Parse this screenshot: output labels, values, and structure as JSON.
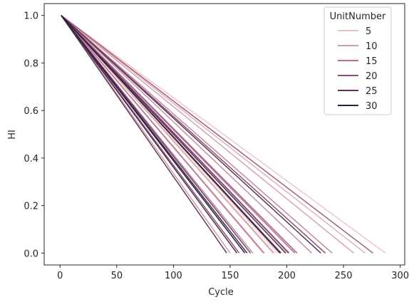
{
  "chart_data": {
    "type": "line",
    "xlabel": "Cycle",
    "ylabel": "HI",
    "xlim": [
      -14,
      304
    ],
    "ylim": [
      -0.05,
      1.05
    ],
    "x_ticks": [
      0,
      50,
      100,
      150,
      200,
      250,
      300
    ],
    "y_ticks": [
      0.0,
      0.2,
      0.4,
      0.6,
      0.8,
      1.0
    ],
    "x_tick_labels": [
      "0",
      "50",
      "100",
      "150",
      "200",
      "250",
      "300"
    ],
    "y_tick_labels": [
      "0.0",
      "0.2",
      "0.4",
      "0.6",
      "0.8",
      "1.0"
    ],
    "grid": false,
    "legend": {
      "title": "UnitNumber",
      "placement": "top-right",
      "entries": [
        {
          "label": "5",
          "color": "#ebc3bd"
        },
        {
          "label": "10",
          "color": "#d799a9"
        },
        {
          "label": "15",
          "color": "#b96e91"
        },
        {
          "label": "20",
          "color": "#8c4b7b"
        },
        {
          "label": "25",
          "color": "#5e2f5e"
        },
        {
          "label": "30",
          "color": "#2d1e3e"
        }
      ]
    },
    "colorscale": {
      "min_unit": 1,
      "max_unit": 30,
      "light": "#f0d0c8",
      "mid": "#b2668c",
      "dark": "#2d1e3e"
    },
    "series": [
      {
        "unit": 1,
        "x": [
          1,
          192
        ],
        "y": [
          1,
          0
        ]
      },
      {
        "unit": 2,
        "x": [
          1,
          287
        ],
        "y": [
          1,
          0
        ]
      },
      {
        "unit": 3,
        "x": [
          1,
          179
        ],
        "y": [
          1,
          0
        ]
      },
      {
        "unit": 4,
        "x": [
          1,
          189
        ],
        "y": [
          1,
          0
        ]
      },
      {
        "unit": 5,
        "x": [
          1,
          269
        ],
        "y": [
          1,
          0
        ]
      },
      {
        "unit": 6,
        "x": [
          1,
          188
        ],
        "y": [
          1,
          0
        ]
      },
      {
        "unit": 7,
        "x": [
          1,
          259
        ],
        "y": [
          1,
          0
        ]
      },
      {
        "unit": 8,
        "x": [
          1,
          150
        ],
        "y": [
          1,
          0
        ]
      },
      {
        "unit": 9,
        "x": [
          1,
          201
        ],
        "y": [
          1,
          0
        ]
      },
      {
        "unit": 10,
        "x": [
          1,
          222
        ],
        "y": [
          1,
          0
        ]
      },
      {
        "unit": 11,
        "x": [
          1,
          240
        ],
        "y": [
          1,
          0
        ]
      },
      {
        "unit": 12,
        "x": [
          1,
          170
        ],
        "y": [
          1,
          0
        ]
      },
      {
        "unit": 13,
        "x": [
          1,
          163
        ],
        "y": [
          1,
          0
        ]
      },
      {
        "unit": 14,
        "x": [
          1,
          180
        ],
        "y": [
          1,
          0
        ]
      },
      {
        "unit": 15,
        "x": [
          1,
          207
        ],
        "y": [
          1,
          0
        ]
      },
      {
        "unit": 16,
        "x": [
          1,
          209
        ],
        "y": [
          1,
          0
        ]
      },
      {
        "unit": 17,
        "x": [
          1,
          276
        ],
        "y": [
          1,
          0
        ]
      },
      {
        "unit": 18,
        "x": [
          1,
          195
        ],
        "y": [
          1,
          0
        ]
      },
      {
        "unit": 19,
        "x": [
          1,
          158
        ],
        "y": [
          1,
          0
        ]
      },
      {
        "unit": 20,
        "x": [
          1,
          234
        ],
        "y": [
          1,
          0
        ]
      },
      {
        "unit": 21,
        "x": [
          1,
          195
        ],
        "y": [
          1,
          0
        ]
      },
      {
        "unit": 22,
        "x": [
          1,
          202
        ],
        "y": [
          1,
          0
        ]
      },
      {
        "unit": 23,
        "x": [
          1,
          168
        ],
        "y": [
          1,
          0
        ]
      },
      {
        "unit": 24,
        "x": [
          1,
          147
        ],
        "y": [
          1,
          0
        ]
      },
      {
        "unit": 25,
        "x": [
          1,
          230
        ],
        "y": [
          1,
          0
        ]
      },
      {
        "unit": 26,
        "x": [
          1,
          199
        ],
        "y": [
          1,
          0
        ]
      },
      {
        "unit": 27,
        "x": [
          1,
          156
        ],
        "y": [
          1,
          0
        ]
      },
      {
        "unit": 28,
        "x": [
          1,
          165
        ],
        "y": [
          1,
          0
        ]
      },
      {
        "unit": 29,
        "x": [
          1,
          163
        ],
        "y": [
          1,
          0
        ]
      },
      {
        "unit": 30,
        "x": [
          1,
          194
        ],
        "y": [
          1,
          0
        ]
      }
    ]
  }
}
